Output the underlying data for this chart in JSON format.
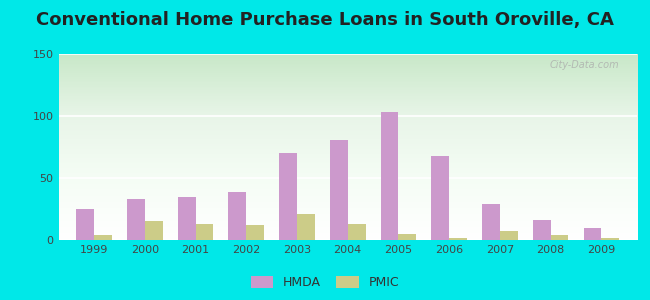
{
  "title": "Conventional Home Purchase Loans in South Oroville, CA",
  "years": [
    1999,
    2000,
    2001,
    2002,
    2003,
    2004,
    2005,
    2006,
    2007,
    2008,
    2009
  ],
  "hmda": [
    25,
    33,
    35,
    39,
    70,
    81,
    103,
    68,
    29,
    16,
    10
  ],
  "pmic": [
    4,
    15,
    13,
    12,
    21,
    13,
    5,
    2,
    7,
    4,
    2
  ],
  "hmda_color": "#cc99cc",
  "pmic_color": "#cccc88",
  "ylim": [
    0,
    150
  ],
  "yticks": [
    0,
    50,
    100,
    150
  ],
  "outer_bg": "#00e8e8",
  "title_fontsize": 13,
  "bar_width": 0.35,
  "legend_hmda": "HMDA",
  "legend_pmic": "PMIC",
  "watermark": "City-Data.com"
}
